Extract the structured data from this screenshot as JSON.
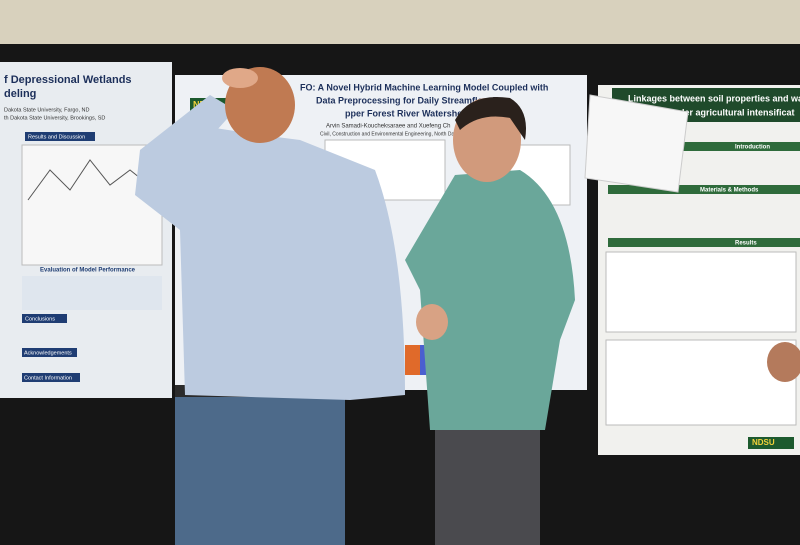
{
  "posters": [
    {
      "title_lines": [
        "f Depressional Wetlands",
        "deling"
      ],
      "affiliations": [
        "Dakota State University, Fargo, ND",
        "th Dakota State University, Brookings, SD"
      ],
      "sections": [
        "Results and Discussion",
        "Evaluation of Model Performance",
        "Conclusions",
        "Acknowledgements",
        "Contact Information"
      ]
    },
    {
      "logo": "NDSU",
      "title_lines": [
        "FO: A Novel Hybrid Machine Learning Model Coupled with",
        "Data Preprocessing for Daily Streamflow Fo",
        "pper Forest River Watershed, North D"
      ],
      "authors": "Arvin Samadi-Koucheksaraee and Xuefeng Ch",
      "affiliation": "Civil, Construction and Environmental Engineering, North Dakota"
    },
    {
      "title_lines": [
        "Linkages between soil properties and water",
        "under agricultural intensificat"
      ],
      "sections": [
        "Introduction",
        "Materials & Methods",
        "Results"
      ],
      "logo": "NDSU"
    }
  ]
}
